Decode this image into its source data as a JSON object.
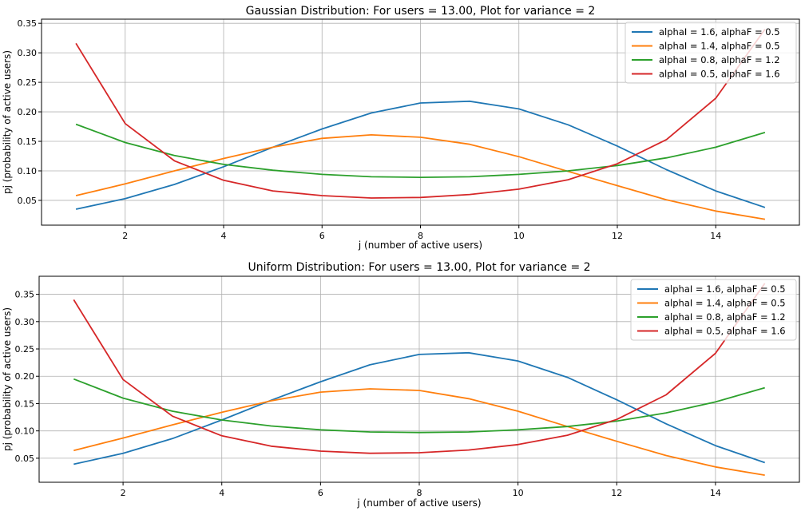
{
  "colors": {
    "series": [
      "#1f77b4",
      "#ff7f0e",
      "#2ca02c",
      "#d62728"
    ],
    "grid": "#b0b0b0",
    "axis": "#000000"
  },
  "chart_data": [
    {
      "type": "line",
      "title": "Gaussian Distribution: For users = 13.00, Plot for variance = 2",
      "xlabel": "j (number of active users)",
      "ylabel": "pj (probability of active users)",
      "xlim": [
        0.3,
        15.7
      ],
      "ylim": [
        0.008,
        0.357
      ],
      "xticks": [
        2,
        4,
        6,
        8,
        10,
        12,
        14
      ],
      "yticks": [
        0.05,
        0.1,
        0.15,
        0.2,
        0.25,
        0.3,
        0.35
      ],
      "grid": true,
      "legend_position": "top-right",
      "x": [
        1,
        2,
        3,
        4,
        5,
        6,
        7,
        8,
        9,
        10,
        11,
        12,
        13,
        14,
        15
      ],
      "series": [
        {
          "name": "alphaI = 1.6, alphaF = 0.5",
          "values": [
            0.035,
            0.053,
            0.077,
            0.107,
            0.14,
            0.171,
            0.198,
            0.215,
            0.218,
            0.205,
            0.178,
            0.142,
            0.102,
            0.066,
            0.038
          ]
        },
        {
          "name": "alphaI = 1.4, alphaF = 0.5",
          "values": [
            0.058,
            0.078,
            0.1,
            0.121,
            0.14,
            0.155,
            0.161,
            0.157,
            0.145,
            0.124,
            0.099,
            0.075,
            0.051,
            0.032,
            0.018
          ]
        },
        {
          "name": "alphaI = 0.8, alphaF = 1.2",
          "values": [
            0.179,
            0.148,
            0.126,
            0.111,
            0.101,
            0.094,
            0.09,
            0.089,
            0.09,
            0.094,
            0.1,
            0.109,
            0.122,
            0.14,
            0.165
          ]
        },
        {
          "name": "alphaI = 0.5, alphaF = 1.6",
          "values": [
            0.316,
            0.18,
            0.117,
            0.084,
            0.066,
            0.058,
            0.054,
            0.055,
            0.06,
            0.069,
            0.085,
            0.112,
            0.153,
            0.223,
            0.34
          ]
        }
      ]
    },
    {
      "type": "line",
      "title": "Uniform Distribution: For users = 13.00, Plot for variance = 2",
      "xlabel": "j (number of active users)",
      "ylabel": "pj (probability of active users)",
      "xlim": [
        0.3,
        15.7
      ],
      "ylim": [
        0.006,
        0.383
      ],
      "xticks": [
        2,
        4,
        6,
        8,
        10,
        12,
        14
      ],
      "yticks": [
        0.05,
        0.1,
        0.15,
        0.2,
        0.25,
        0.3,
        0.35
      ],
      "grid": true,
      "legend_position": "top-right",
      "x": [
        1,
        2,
        3,
        4,
        5,
        6,
        7,
        8,
        9,
        10,
        11,
        12,
        13,
        14,
        15
      ],
      "series": [
        {
          "name": "alphaI = 1.6, alphaF = 0.5",
          "values": [
            0.039,
            0.059,
            0.086,
            0.12,
            0.156,
            0.19,
            0.221,
            0.24,
            0.243,
            0.228,
            0.198,
            0.157,
            0.113,
            0.073,
            0.042
          ]
        },
        {
          "name": "alphaI = 1.4, alphaF = 0.5",
          "values": [
            0.064,
            0.087,
            0.111,
            0.134,
            0.155,
            0.171,
            0.177,
            0.174,
            0.159,
            0.136,
            0.108,
            0.081,
            0.055,
            0.034,
            0.019
          ]
        },
        {
          "name": "alphaI = 0.8, alphaF = 1.2",
          "values": [
            0.195,
            0.16,
            0.136,
            0.12,
            0.109,
            0.102,
            0.098,
            0.097,
            0.098,
            0.102,
            0.108,
            0.118,
            0.133,
            0.153,
            0.179
          ]
        },
        {
          "name": "alphaI = 0.5, alphaF = 1.6",
          "values": [
            0.34,
            0.194,
            0.127,
            0.091,
            0.072,
            0.063,
            0.059,
            0.06,
            0.065,
            0.075,
            0.092,
            0.121,
            0.166,
            0.242,
            0.37
          ]
        }
      ]
    }
  ]
}
